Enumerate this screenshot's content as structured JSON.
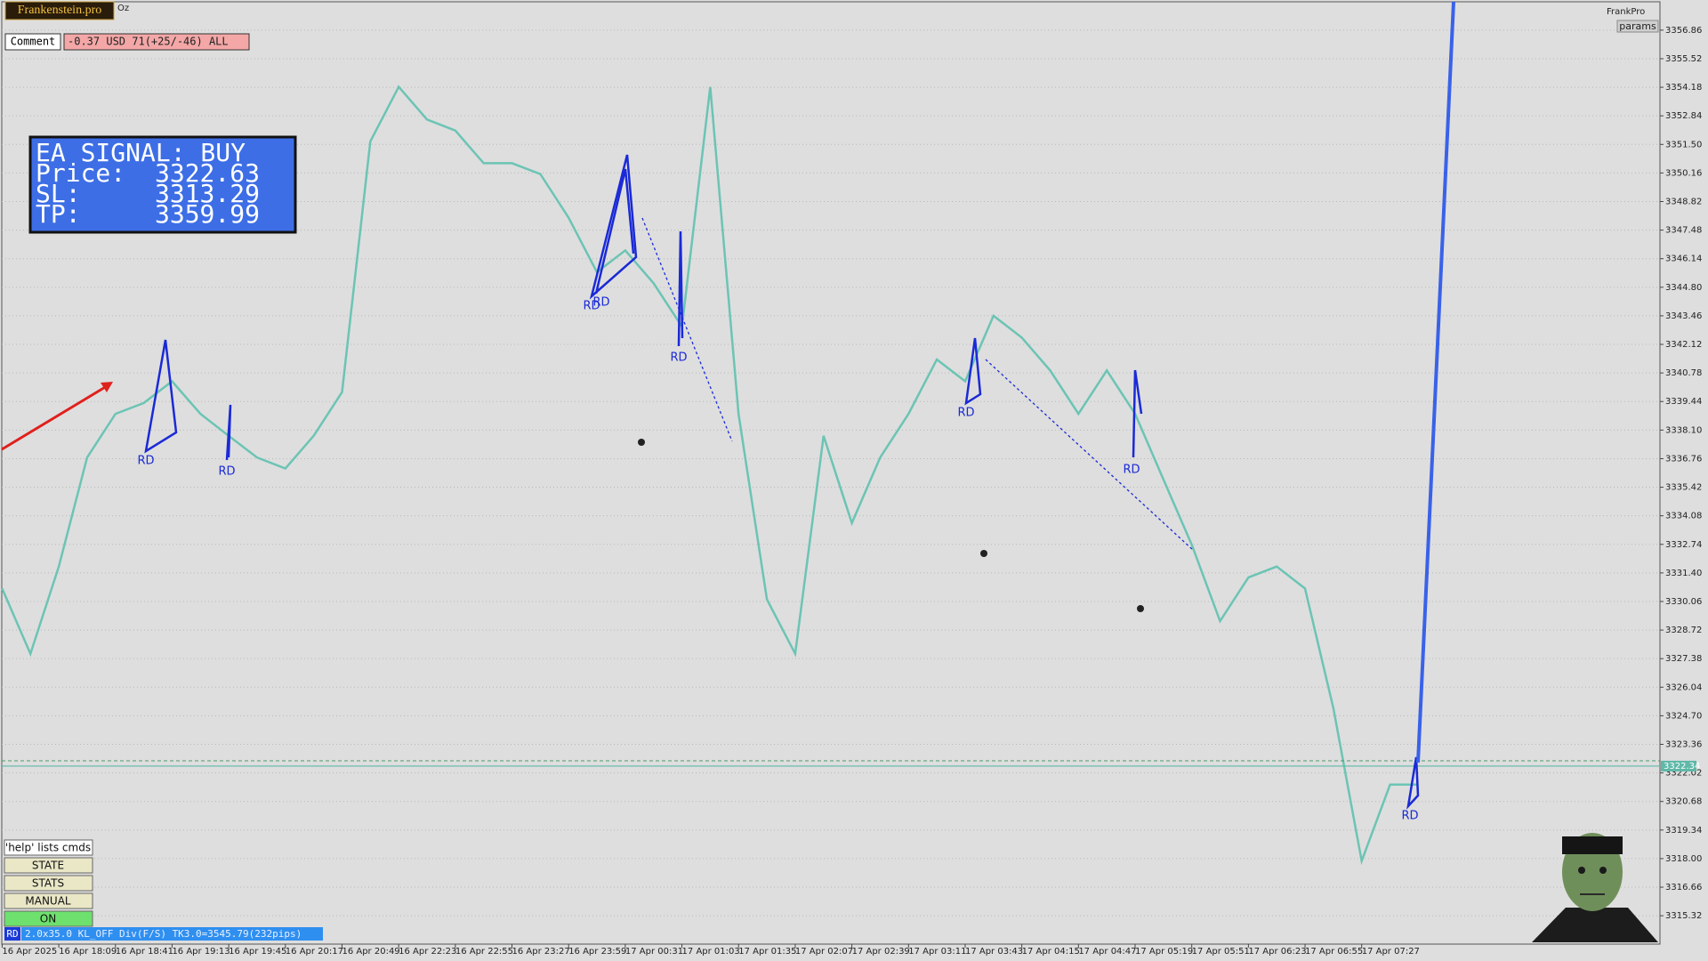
{
  "chart_data": {
    "type": "line",
    "x": [
      "16 Apr 2025",
      null,
      "16 Apr 18:09",
      null,
      "16 Apr 18:41",
      null,
      "16 Apr 19:13",
      null,
      "16 Apr 19:45",
      null,
      "16 Apr 20:17",
      null,
      "16 Apr 20:49",
      null,
      "16 Apr 22:23",
      null,
      "16 Apr 22:55",
      null,
      "16 Apr 23:27",
      null,
      "16 Apr 23:59",
      null,
      "17 Apr 00:31",
      null,
      "17 Apr 01:03",
      null,
      "17 Apr 01:35",
      null,
      "17 Apr 02:07",
      null,
      "17 Apr 02:39",
      null,
      "17 Apr 03:11",
      null,
      "17 Apr 03:43",
      null,
      "17 Apr 04:15",
      null,
      "17 Apr 04:47",
      null,
      "17 Apr 05:19",
      null,
      "17 Apr 05:51",
      null,
      "17 Apr 06:23",
      null,
      "17 Apr 06:55",
      null,
      "17 Apr 07:27",
      null,
      null
    ],
    "values": [
      3330.67,
      3327.61,
      3331.7,
      3336.81,
      3338.86,
      3339.37,
      3340.39,
      3338.86,
      3337.83,
      3336.81,
      3336.3,
      3337.83,
      3339.88,
      3351.64,
      3354.2,
      3352.67,
      3352.15,
      3350.62,
      3350.62,
      3350.11,
      3348.06,
      3345.51,
      3346.53,
      3344.99,
      3342.95,
      3354.2,
      3338.86,
      3330.16,
      3327.61,
      3337.83,
      3333.74,
      3336.81,
      3338.86,
      3341.41,
      3340.39,
      3343.46,
      3342.44,
      3340.9,
      3338.86,
      3340.9,
      3338.86,
      3335.79,
      3332.72,
      3329.14,
      3331.19,
      3331.7,
      3330.67,
      3325.05,
      3317.89,
      3321.47,
      3321.47
    ],
    "color": "#6cc4b4",
    "ylim": [
      3313.99,
      3358.19
    ],
    "yticks": [
      3356.86,
      3355.52,
      3354.18,
      3352.84,
      {
        "value": 3351.5,
        "label": "3351.50"
      },
      3350.16,
      3348.82,
      3347.48,
      3346.14,
      {
        "value": 3344.8,
        "label": "3344.80"
      },
      3343.46,
      3342.12,
      3340.78,
      3339.44,
      {
        "value": 3338.1,
        "label": "3338.10"
      },
      3336.76,
      3335.42,
      3334.08,
      3332.74,
      {
        "value": 3331.4,
        "label": "3331.40"
      },
      3330.06,
      3328.72,
      3327.38,
      3326.04,
      {
        "value": 3324.7,
        "label": "3324.70"
      },
      3323.36,
      3322.02,
      3320.68,
      3319.34,
      {
        "value": 3318,
        "label": "3318.00"
      },
      3316.66,
      3315.32
    ],
    "grid": true,
    "current_price": 3322.34,
    "annotations": [
      "RD",
      "RD",
      "RD",
      "RD",
      "RD",
      "RD",
      "RD",
      "RD"
    ]
  },
  "ui": {
    "brand": "Frankenstein.pro",
    "symbol_suffix": "Oz",
    "comment": "Comment",
    "account": "-0.37 USD 71(+25/-46) ALL",
    "top_right": "FrankPro",
    "params": "params",
    "ea_panel": {
      "signal": "EA SIGNAL: BUY",
      "rows": [
        {
          "label": "Price:",
          "value": 3322.63
        },
        {
          "label": "SL:",
          "value": 3313.29
        },
        {
          "label": "TP:",
          "value": 3359.99
        }
      ]
    },
    "buttons": [
      "'help' lists cmds",
      "STATE",
      "STATS",
      "MANUAL",
      "ON"
    ],
    "status": {
      "tag": "RD",
      "text": "2.0x35.0 KL_OFF Div(F/S) TK3.0=3545.79(232pips)"
    }
  }
}
